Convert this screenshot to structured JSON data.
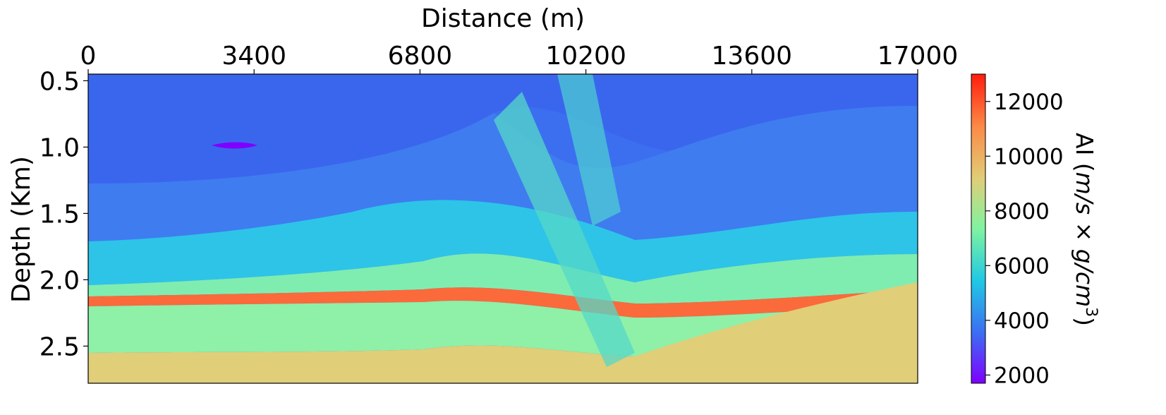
{
  "chart_data": {
    "type": "heatmap",
    "xlabel": "Distance (m)",
    "ylabel": "Depth (Km)",
    "x_ticks": [
      0,
      3400,
      6800,
      10200,
      13600,
      17000
    ],
    "y_ticks": [
      0.5,
      1.0,
      1.5,
      2.0,
      2.5
    ],
    "xlim": [
      0,
      17000
    ],
    "ylim": [
      0.45,
      2.78
    ],
    "x_axis_position": "top",
    "colormap": "rainbow",
    "colorbar": {
      "label_prefix": "AI (",
      "label_math": "m/s × g/cm",
      "label_sup": "3",
      "label_suffix": ")",
      "ticks": [
        2000,
        4000,
        6000,
        8000,
        10000,
        12000
      ],
      "range": [
        1700,
        13000
      ]
    },
    "grid": false,
    "colors": {
      "low": "#7f00ff",
      "deep_blue": "#3b6ff0",
      "cyan": "#1fc8e4",
      "green": "#80f3a0",
      "tan": "#e0ce78",
      "orange": "#fb8a47",
      "high": "#ff1d0e"
    },
    "layers_top_to_bottom": [
      {
        "zone": "upper",
        "value": 3600
      },
      {
        "zone": "upper",
        "value": 4200
      },
      {
        "zone": "middle",
        "value": 5800
      },
      {
        "zone": "middle",
        "value": 7000
      },
      {
        "zone": "lower",
        "value": 11800
      },
      {
        "zone": "lower",
        "value": 7400
      },
      {
        "zone": "bottom",
        "value": 9800
      }
    ]
  }
}
